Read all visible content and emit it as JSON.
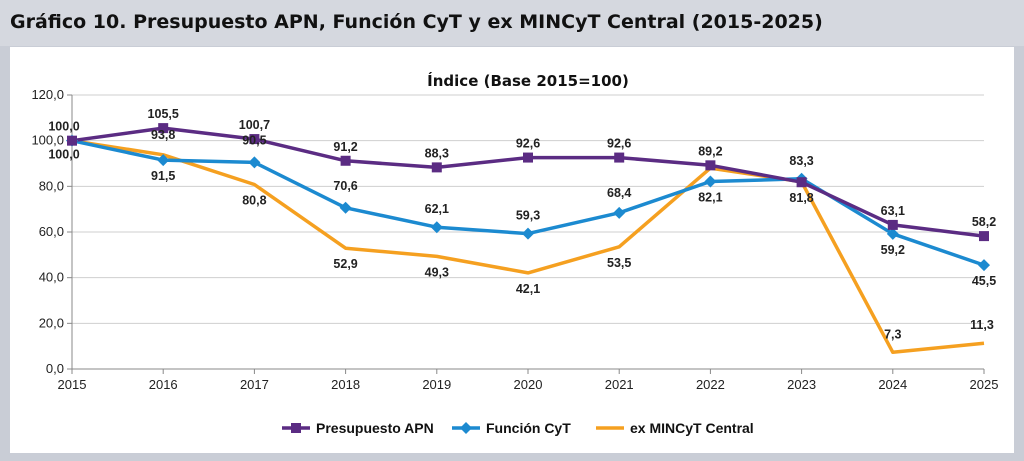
{
  "page": {
    "title": "Gráfico 10. Presupuesto APN, Función CyT y ex MINCyT Central (2015-2025)"
  },
  "chart_data": {
    "type": "line",
    "title": "Índice (Base 2015=100)",
    "x": [
      "2015",
      "2016",
      "2017",
      "2018",
      "2019",
      "2020",
      "2021",
      "2022",
      "2023",
      "2024",
      "2025"
    ],
    "ylim": [
      0,
      120
    ],
    "yticks": [
      "0,0",
      "20,0",
      "40,0",
      "60,0",
      "80,0",
      "100,0",
      "120,0"
    ],
    "grid": true,
    "legend_position": "bottom",
    "series": [
      {
        "name": "Presupuesto APN",
        "color": "#5b2c83",
        "marker": "square",
        "values": [
          100.0,
          105.5,
          100.7,
          91.2,
          88.3,
          92.6,
          92.6,
          89.2,
          81.8,
          63.1,
          58.2
        ],
        "labels": [
          "100,0",
          "105,5",
          "100,7",
          "91,2",
          "88,3",
          "92,6",
          "92,6",
          "89,2",
          "81,8",
          "63,1",
          "58,2"
        ]
      },
      {
        "name": "Función CyT",
        "color": "#1c8ad0",
        "marker": "diamond",
        "values": [
          100.0,
          91.5,
          90.5,
          70.6,
          62.1,
          59.3,
          68.4,
          82.1,
          83.3,
          59.2,
          45.5
        ],
        "labels": [
          "100,0",
          "91,5",
          "90,5",
          "70,6",
          "62,1",
          "59,3",
          "68,4",
          "82,1",
          "83,3",
          "59,2",
          "45,5"
        ]
      },
      {
        "name": "ex MINCyT Central",
        "color": "#f5a020",
        "marker": "none",
        "values": [
          100.0,
          93.8,
          80.8,
          52.9,
          49.3,
          42.1,
          53.5,
          88.0,
          82.0,
          7.3,
          11.3
        ],
        "labels": [
          "",
          "93,8",
          "80,8",
          "52,9",
          "49,3",
          "42,1",
          "53,5",
          "",
          "",
          "7,3",
          "11,3"
        ]
      }
    ]
  }
}
